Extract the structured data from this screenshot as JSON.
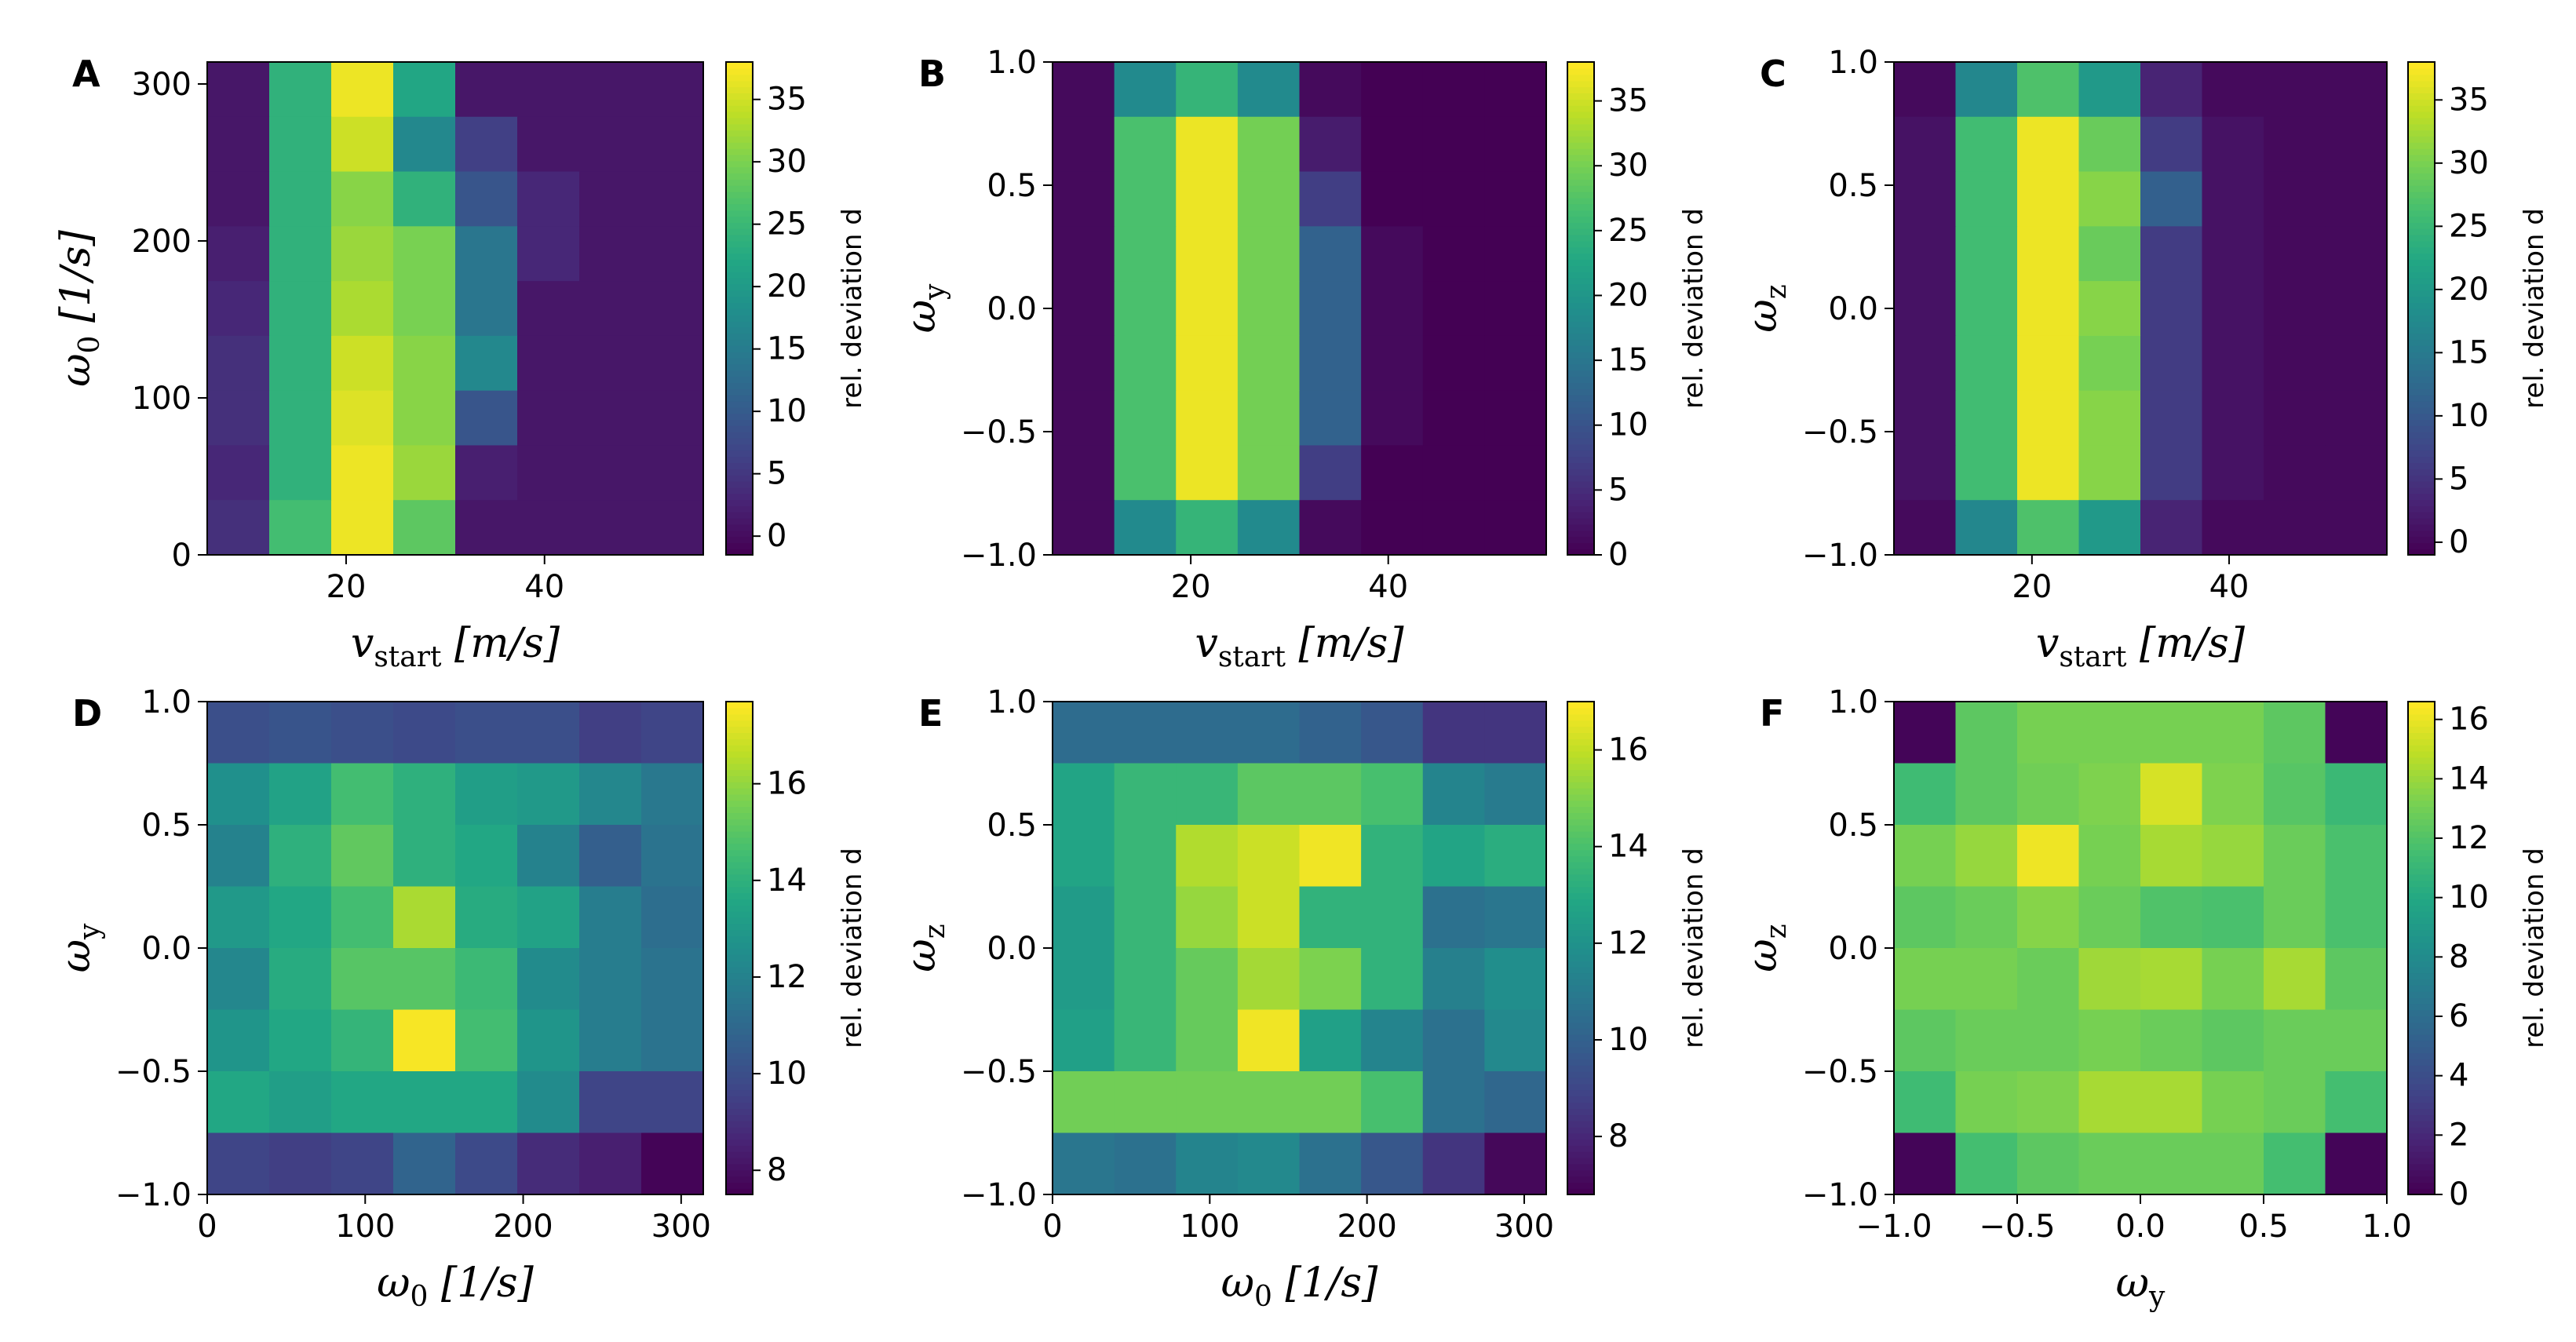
{
  "colorbar_label": "rel. deviation d",
  "chart_data": [
    {
      "panel_label": "A",
      "type": "heatmap",
      "x_range": [
        6,
        56
      ],
      "y_range": [
        0,
        314
      ],
      "xlabel": {
        "main": "v",
        "sub": "start",
        "unit": "[m/s]"
      },
      "ylabel": {
        "main": "ω",
        "sub": "0",
        "unit": "[1/s]"
      },
      "xticks": [
        {
          "v": 20,
          "t": "20"
        },
        {
          "v": 40,
          "t": "40"
        }
      ],
      "yticks": [
        {
          "v": 0,
          "t": "0"
        },
        {
          "v": 100,
          "t": "100"
        },
        {
          "v": 200,
          "t": "200"
        },
        {
          "v": 300,
          "t": "300"
        }
      ],
      "vmin": -1.5,
      "vmax": 38,
      "cbticks": [
        {
          "v": 0,
          "t": "0"
        },
        {
          "v": 5,
          "t": "5"
        },
        {
          "v": 10,
          "t": "10"
        },
        {
          "v": 15,
          "t": "15"
        },
        {
          "v": 20,
          "t": "20"
        },
        {
          "v": 25,
          "t": "25"
        },
        {
          "v": 30,
          "t": "30"
        },
        {
          "v": 35,
          "t": "35"
        }
      ],
      "z": [
        [
          1,
          24,
          37,
          22,
          1,
          1,
          1,
          1
        ],
        [
          1,
          24,
          35,
          17,
          6,
          1,
          1,
          1
        ],
        [
          1,
          24,
          31,
          24,
          9,
          3,
          1,
          1
        ],
        [
          2,
          24,
          32,
          30,
          14,
          3,
          1,
          1
        ],
        [
          3,
          24,
          33,
          30,
          14,
          1,
          1,
          1
        ],
        [
          4,
          24,
          35,
          31,
          17,
          1,
          1,
          1
        ],
        [
          4,
          24,
          36,
          31,
          9,
          1,
          1,
          1
        ],
        [
          3,
          24,
          37,
          32,
          2,
          1,
          1,
          1
        ],
        [
          4,
          26,
          37,
          28,
          1,
          1,
          1,
          1
        ]
      ]
    },
    {
      "panel_label": "B",
      "type": "heatmap",
      "x_range": [
        6,
        56
      ],
      "y_range": [
        -1.0,
        1.0
      ],
      "xlabel": {
        "main": "v",
        "sub": "start",
        "unit": "[m/s]"
      },
      "ylabel": {
        "main": "ω",
        "sub": "y",
        "unit": ""
      },
      "xticks": [
        {
          "v": 20,
          "t": "20"
        },
        {
          "v": 40,
          "t": "40"
        }
      ],
      "yticks": [
        {
          "v": -1.0,
          "t": "−1.0"
        },
        {
          "v": -0.5,
          "t": "−0.5"
        },
        {
          "v": 0.0,
          "t": "0.0"
        },
        {
          "v": 0.5,
          "t": "0.5"
        },
        {
          "v": 1.0,
          "t": "1.0"
        }
      ],
      "vmin": 0,
      "vmax": 38,
      "cbticks": [
        {
          "v": 0,
          "t": "0"
        },
        {
          "v": 5,
          "t": "5"
        },
        {
          "v": 10,
          "t": "10"
        },
        {
          "v": 15,
          "t": "15"
        },
        {
          "v": 20,
          "t": "20"
        },
        {
          "v": 25,
          "t": "25"
        },
        {
          "v": 30,
          "t": "30"
        },
        {
          "v": 35,
          "t": "35"
        }
      ],
      "z": [
        [
          1,
          18,
          25,
          18,
          1,
          0,
          0,
          0
        ],
        [
          1,
          27,
          37,
          30,
          3,
          0,
          0,
          0
        ],
        [
          1,
          27,
          37,
          30,
          7,
          0,
          0,
          0
        ],
        [
          1,
          27,
          37,
          30,
          12,
          1,
          0,
          0
        ],
        [
          1,
          27,
          37,
          30,
          12,
          1,
          0,
          0
        ],
        [
          1,
          27,
          37,
          30,
          12,
          1,
          0,
          0
        ],
        [
          1,
          27,
          37,
          30,
          12,
          1,
          0,
          0
        ],
        [
          1,
          27,
          37,
          30,
          7,
          0,
          0,
          0
        ],
        [
          1,
          18,
          25,
          18,
          1,
          0,
          0,
          0
        ]
      ]
    },
    {
      "panel_label": "C",
      "type": "heatmap",
      "x_range": [
        6,
        56
      ],
      "y_range": [
        -1.0,
        1.0
      ],
      "xlabel": {
        "main": "v",
        "sub": "start",
        "unit": "[m/s]"
      },
      "ylabel": {
        "main": "ω",
        "sub": "z",
        "unit": ""
      },
      "xticks": [
        {
          "v": 20,
          "t": "20"
        },
        {
          "v": 40,
          "t": "40"
        }
      ],
      "yticks": [
        {
          "v": -1.0,
          "t": "−1.0"
        },
        {
          "v": -0.5,
          "t": "−0.5"
        },
        {
          "v": 0.0,
          "t": "0.0"
        },
        {
          "v": 0.5,
          "t": "0.5"
        },
        {
          "v": 1.0,
          "t": "1.0"
        }
      ],
      "vmin": -1,
      "vmax": 38,
      "cbticks": [
        {
          "v": 0,
          "t": "0"
        },
        {
          "v": 5,
          "t": "5"
        },
        {
          "v": 10,
          "t": "10"
        },
        {
          "v": 15,
          "t": "15"
        },
        {
          "v": 20,
          "t": "20"
        },
        {
          "v": 25,
          "t": "25"
        },
        {
          "v": 30,
          "t": "30"
        },
        {
          "v": 35,
          "t": "35"
        }
      ],
      "z": [
        [
          0,
          17,
          27,
          20,
          3,
          0,
          0,
          0
        ],
        [
          1,
          26,
          37,
          29,
          6,
          1,
          0,
          0
        ],
        [
          1,
          26,
          37,
          31,
          11,
          1,
          0,
          0
        ],
        [
          1,
          26,
          37,
          29,
          6,
          1,
          0,
          0
        ],
        [
          1,
          26,
          37,
          31,
          6,
          1,
          0,
          0
        ],
        [
          1,
          26,
          37,
          30,
          6,
          1,
          0,
          0
        ],
        [
          1,
          26,
          37,
          31,
          6,
          1,
          0,
          0
        ],
        [
          1,
          26,
          37,
          31,
          6,
          1,
          0,
          0
        ],
        [
          0,
          17,
          27,
          20,
          3,
          0,
          0,
          0
        ]
      ]
    },
    {
      "panel_label": "D",
      "type": "heatmap",
      "x_range": [
        0,
        314
      ],
      "y_range": [
        -1.0,
        1.0
      ],
      "xlabel": {
        "main": "ω",
        "sub": "0",
        "unit": "[1/s]"
      },
      "ylabel": {
        "main": "ω",
        "sub": "y",
        "unit": ""
      },
      "xticks": [
        {
          "v": 0,
          "t": "0"
        },
        {
          "v": 100,
          "t": "100"
        },
        {
          "v": 200,
          "t": "200"
        },
        {
          "v": 300,
          "t": "300"
        }
      ],
      "yticks": [
        {
          "v": -1.0,
          "t": "−1.0"
        },
        {
          "v": -0.5,
          "t": "−0.5"
        },
        {
          "v": 0.0,
          "t": "0.0"
        },
        {
          "v": 0.5,
          "t": "0.5"
        },
        {
          "v": 1.0,
          "t": "1.0"
        }
      ],
      "vmin": 7.5,
      "vmax": 17.7,
      "cbticks": [
        {
          "v": 8,
          "t": "8"
        },
        {
          "v": 10,
          "t": "10"
        },
        {
          "v": 12,
          "t": "12"
        },
        {
          "v": 14,
          "t": "14"
        },
        {
          "v": 16,
          "t": "16"
        }
      ],
      "z": [
        [
          10.0,
          10.2,
          10.0,
          9.8,
          10.0,
          10.0,
          9.4,
          9.6
        ],
        [
          12.6,
          13.4,
          14.6,
          14.0,
          13.2,
          13.0,
          12.2,
          11.6
        ],
        [
          12.0,
          14.0,
          15.2,
          14.0,
          13.6,
          12.0,
          10.6,
          11.4
        ],
        [
          13.0,
          13.6,
          14.6,
          16.4,
          13.8,
          13.4,
          11.8,
          11.2
        ],
        [
          12.2,
          13.8,
          15.0,
          15.0,
          14.4,
          12.4,
          11.8,
          11.4
        ],
        [
          12.8,
          13.6,
          14.2,
          17.6,
          14.6,
          12.8,
          11.8,
          11.4
        ],
        [
          13.6,
          13.2,
          13.6,
          13.6,
          13.6,
          12.4,
          9.6,
          9.6
        ],
        [
          9.6,
          9.4,
          9.6,
          10.8,
          9.8,
          8.8,
          8.4,
          7.6
        ]
      ]
    },
    {
      "panel_label": "E",
      "type": "heatmap",
      "x_range": [
        0,
        314
      ],
      "y_range": [
        -1.0,
        1.0
      ],
      "xlabel": {
        "main": "ω",
        "sub": "0",
        "unit": "[1/s]"
      },
      "ylabel": {
        "main": "ω",
        "sub": "z",
        "unit": ""
      },
      "xticks": [
        {
          "v": 0,
          "t": "0"
        },
        {
          "v": 100,
          "t": "100"
        },
        {
          "v": 200,
          "t": "200"
        },
        {
          "v": 300,
          "t": "300"
        }
      ],
      "yticks": [
        {
          "v": -1.0,
          "t": "−1.0"
        },
        {
          "v": -0.5,
          "t": "−0.5"
        },
        {
          "v": 0.0,
          "t": "0.0"
        },
        {
          "v": 0.5,
          "t": "0.5"
        },
        {
          "v": 1.0,
          "t": "1.0"
        }
      ],
      "vmin": 6.8,
      "vmax": 17.0,
      "cbticks": [
        {
          "v": 8,
          "t": "8"
        },
        {
          "v": 10,
          "t": "10"
        },
        {
          "v": 12,
          "t": "12"
        },
        {
          "v": 14,
          "t": "14"
        },
        {
          "v": 16,
          "t": "16"
        }
      ],
      "z": [
        [
          10.4,
          10.4,
          10.4,
          10.4,
          10.0,
          9.6,
          8.4,
          8.4
        ],
        [
          12.8,
          13.6,
          13.6,
          14.4,
          14.4,
          14.0,
          11.4,
          11.0
        ],
        [
          12.8,
          13.6,
          15.8,
          16.2,
          16.8,
          13.4,
          12.8,
          13.2
        ],
        [
          12.4,
          13.6,
          15.4,
          16.2,
          13.4,
          13.4,
          10.6,
          10.8
        ],
        [
          12.4,
          13.6,
          14.6,
          15.6,
          15.0,
          13.4,
          11.2,
          11.8
        ],
        [
          12.6,
          13.6,
          14.6,
          16.8,
          12.6,
          11.4,
          10.6,
          11.6
        ],
        [
          14.8,
          14.8,
          14.8,
          14.8,
          14.8,
          14.0,
          10.6,
          10.2
        ],
        [
          10.8,
          10.6,
          11.4,
          11.6,
          10.6,
          9.6,
          8.4,
          7.0
        ]
      ]
    },
    {
      "panel_label": "F",
      "type": "heatmap",
      "x_range": [
        -1.0,
        1.0
      ],
      "y_range": [
        -1.0,
        1.0
      ],
      "xlabel": {
        "main": "ω",
        "sub": "y",
        "unit": ""
      },
      "ylabel": {
        "main": "ω",
        "sub": "z",
        "unit": ""
      },
      "xticks": [
        {
          "v": -1.0,
          "t": "−1.0"
        },
        {
          "v": -0.5,
          "t": "−0.5"
        },
        {
          "v": 0.0,
          "t": "0.0"
        },
        {
          "v": 0.5,
          "t": "0.5"
        },
        {
          "v": 1.0,
          "t": "1.0"
        }
      ],
      "yticks": [
        {
          "v": -1.0,
          "t": "−1.0"
        },
        {
          "v": -0.5,
          "t": "−0.5"
        },
        {
          "v": 0.0,
          "t": "0.0"
        },
        {
          "v": 0.5,
          "t": "0.5"
        },
        {
          "v": 1.0,
          "t": "1.0"
        }
      ],
      "vmin": 0,
      "vmax": 16.6,
      "cbticks": [
        {
          "v": 0,
          "t": "0"
        },
        {
          "v": 2,
          "t": "2"
        },
        {
          "v": 4,
          "t": "4"
        },
        {
          "v": 6,
          "t": "6"
        },
        {
          "v": 8,
          "t": "8"
        },
        {
          "v": 10,
          "t": "10"
        },
        {
          "v": 12,
          "t": "12"
        },
        {
          "v": 14,
          "t": "14"
        },
        {
          "v": 16,
          "t": "16"
        }
      ],
      "z": [
        [
          0.2,
          12.4,
          13.2,
          13.2,
          13.2,
          13.2,
          12.4,
          0.2
        ],
        [
          11.4,
          12.4,
          13.0,
          13.4,
          15.6,
          13.4,
          12.2,
          11.2
        ],
        [
          13.2,
          14.0,
          16.2,
          13.2,
          14.4,
          14.0,
          12.8,
          11.8
        ],
        [
          12.4,
          12.8,
          13.6,
          12.8,
          12.0,
          11.8,
          12.8,
          11.8
        ],
        [
          13.2,
          13.2,
          12.8,
          14.2,
          14.4,
          13.2,
          14.4,
          12.4
        ],
        [
          12.4,
          12.8,
          12.8,
          13.2,
          12.8,
          12.4,
          12.8,
          12.8
        ],
        [
          11.4,
          13.2,
          13.4,
          14.4,
          14.4,
          13.2,
          12.8,
          11.6
        ],
        [
          0.2,
          11.6,
          12.4,
          12.8,
          12.8,
          12.8,
          11.6,
          0.2
        ]
      ]
    }
  ]
}
